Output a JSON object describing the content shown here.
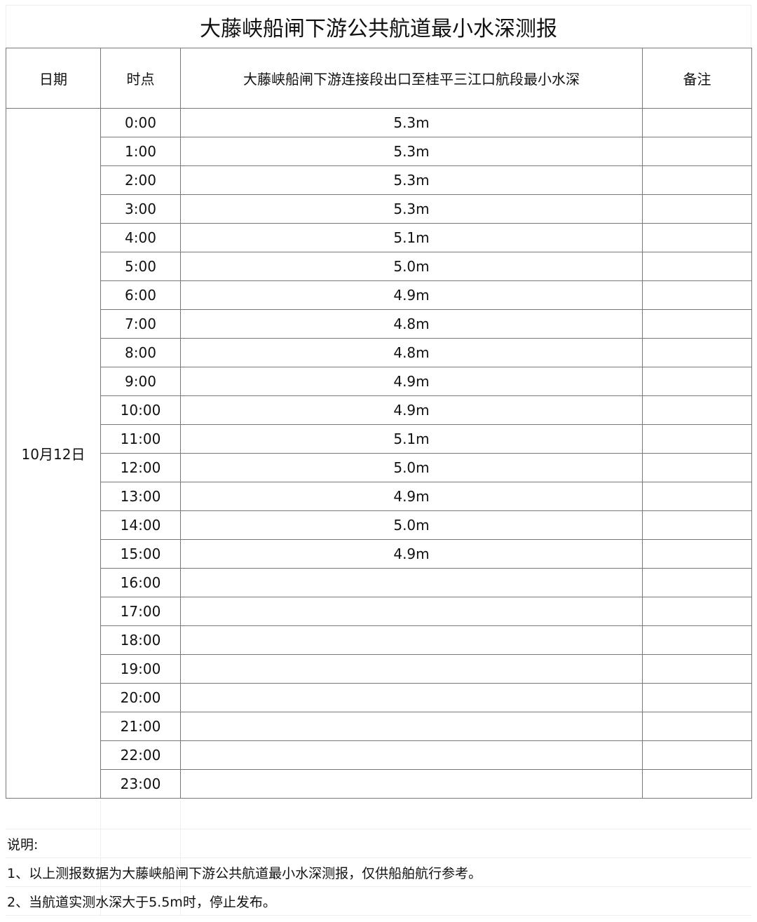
{
  "title": "大藤峡船闸下游公共航道最小水深测报",
  "headers": {
    "date": "日期",
    "time": "时点",
    "depth": "大藤峡船闸下游连接段出口至桂平三江口航段最小水深",
    "remark": "备注"
  },
  "date": "10月12日",
  "rows": [
    {
      "time": "0:00",
      "depth": "5.3m"
    },
    {
      "time": "1:00",
      "depth": "5.3m"
    },
    {
      "time": "2:00",
      "depth": "5.3m"
    },
    {
      "time": "3:00",
      "depth": "5.3m"
    },
    {
      "time": "4:00",
      "depth": "5.1m"
    },
    {
      "time": "5:00",
      "depth": "5.0m"
    },
    {
      "time": "6:00",
      "depth": "4.9m"
    },
    {
      "time": "7:00",
      "depth": "4.8m"
    },
    {
      "time": "8:00",
      "depth": "4.8m"
    },
    {
      "time": "9:00",
      "depth": "4.9m"
    },
    {
      "time": "10:00",
      "depth": "4.9m"
    },
    {
      "time": "11:00",
      "depth": "5.1m"
    },
    {
      "time": "12:00",
      "depth": "5.0m"
    },
    {
      "time": "13:00",
      "depth": "4.9m"
    },
    {
      "time": "14:00",
      "depth": "5.0m"
    },
    {
      "time": "15:00",
      "depth": "4.9m"
    },
    {
      "time": "16:00",
      "depth": ""
    },
    {
      "time": "17:00",
      "depth": ""
    },
    {
      "time": "18:00",
      "depth": ""
    },
    {
      "time": "19:00",
      "depth": ""
    },
    {
      "time": "20:00",
      "depth": ""
    },
    {
      "time": "21:00",
      "depth": ""
    },
    {
      "time": "22:00",
      "depth": ""
    },
    {
      "time": "23:00",
      "depth": ""
    }
  ],
  "notes": {
    "heading": "说明:",
    "items": [
      "1、以上测报数据为大藤峡船闸下游公共航道最小水深测报，仅供船舶航行参考。",
      "2、当航道实测水深大于5.5m时，停止发布。"
    ]
  }
}
